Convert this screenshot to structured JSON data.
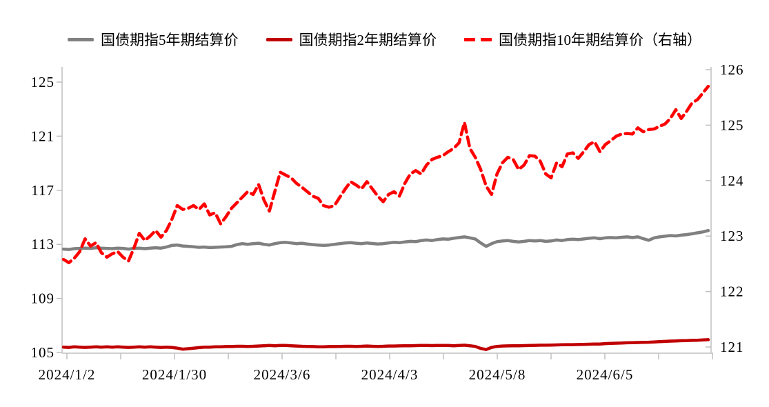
{
  "colors": {
    "gray_series": "#808080",
    "darkred_series": "#C00000",
    "red_series": "#FF0000",
    "axis_line": "#CFCFCF",
    "tick_mark": "#BFBFBF",
    "text": "#000000",
    "background": "#FFFFFF"
  },
  "legend": [
    {
      "id": "5y",
      "label": "国债期指5年期结算价",
      "color": "#808080",
      "style": "solid"
    },
    {
      "id": "2y",
      "label": "国债期指2年期结算价",
      "color": "#C00000",
      "style": "solid"
    },
    {
      "id": "10y",
      "label": "国债期指10年期结算价（右轴）",
      "color": "#FF0000",
      "style": "dashed"
    }
  ],
  "chart_data": {
    "type": "line",
    "title": "",
    "x_tick_labels": [
      "2024/1/2",
      "2024/1/30",
      "2024/3/6",
      "2024/4/3",
      "2024/5/8",
      "2024/6/5"
    ],
    "left_axis": {
      "ticks": [
        105,
        109,
        113,
        117,
        121,
        125
      ],
      "range": [
        105,
        125
      ]
    },
    "right_axis": {
      "ticks": [
        121,
        122,
        123,
        124,
        125,
        126
      ],
      "range": [
        121,
        126
      ]
    },
    "grid": "off",
    "legend_position": "top-center",
    "series": [
      {
        "id": "5y",
        "name": "国债期指5年期结算价",
        "axis": "left",
        "color": "#808080",
        "dash": false,
        "values": [
          112.65,
          112.62,
          112.68,
          112.7,
          112.72,
          112.7,
          112.75,
          112.72,
          112.7,
          112.68,
          112.72,
          112.7,
          112.65,
          112.7,
          112.72,
          112.68,
          112.72,
          112.75,
          112.72,
          112.8,
          112.92,
          112.95,
          112.88,
          112.85,
          112.82,
          112.78,
          112.8,
          112.76,
          112.78,
          112.8,
          112.82,
          112.85,
          112.98,
          113.05,
          113.0,
          113.05,
          113.08,
          113.0,
          112.95,
          113.05,
          113.12,
          113.15,
          113.1,
          113.05,
          113.08,
          113.02,
          112.98,
          112.95,
          112.92,
          112.95,
          113.0,
          113.05,
          113.1,
          113.12,
          113.08,
          113.05,
          113.1,
          113.06,
          113.02,
          113.05,
          113.1,
          113.15,
          113.12,
          113.18,
          113.22,
          113.2,
          113.28,
          113.32,
          113.28,
          113.35,
          113.4,
          113.38,
          113.45,
          113.5,
          113.55,
          113.48,
          113.4,
          113.1,
          112.85,
          113.05,
          113.2,
          113.25,
          113.28,
          113.22,
          113.18,
          113.22,
          113.28,
          113.25,
          113.28,
          113.22,
          113.25,
          113.32,
          113.28,
          113.35,
          113.38,
          113.35,
          113.4,
          113.45,
          113.48,
          113.42,
          113.48,
          113.5,
          113.48,
          113.52,
          113.55,
          113.5,
          113.55,
          113.42,
          113.3,
          113.48,
          113.55,
          113.6,
          113.65,
          113.62,
          113.68,
          113.72,
          113.78,
          113.85,
          113.92,
          114.02
        ]
      },
      {
        "id": "2y",
        "name": "国债期指2年期结算价",
        "axis": "left",
        "color": "#C00000",
        "dash": false,
        "values": [
          105.4,
          105.38,
          105.42,
          105.4,
          105.38,
          105.4,
          105.42,
          105.4,
          105.42,
          105.4,
          105.42,
          105.4,
          105.38,
          105.4,
          105.42,
          105.4,
          105.42,
          105.4,
          105.38,
          105.4,
          105.38,
          105.32,
          105.25,
          105.28,
          105.32,
          105.36,
          105.4,
          105.4,
          105.42,
          105.42,
          105.44,
          105.44,
          105.46,
          105.46,
          105.45,
          105.46,
          105.48,
          105.5,
          105.52,
          105.5,
          105.52,
          105.52,
          105.5,
          105.48,
          105.46,
          105.45,
          105.44,
          105.42,
          105.42,
          105.44,
          105.44,
          105.45,
          105.46,
          105.46,
          105.45,
          105.46,
          105.48,
          105.46,
          105.45,
          105.46,
          105.48,
          105.48,
          105.49,
          105.5,
          105.5,
          105.51,
          105.52,
          105.52,
          105.51,
          105.52,
          105.52,
          105.52,
          105.5,
          105.52,
          105.54,
          105.5,
          105.45,
          105.3,
          105.22,
          105.38,
          105.45,
          105.48,
          105.49,
          105.5,
          105.5,
          105.51,
          105.52,
          105.53,
          105.54,
          105.54,
          105.55,
          105.56,
          105.57,
          105.58,
          105.58,
          105.59,
          105.6,
          105.61,
          105.62,
          105.63,
          105.66,
          105.68,
          105.69,
          105.7,
          105.72,
          105.73,
          105.74,
          105.75,
          105.76,
          105.78,
          105.8,
          105.82,
          105.84,
          105.85,
          105.87,
          105.88,
          105.9,
          105.91,
          105.93,
          105.95
        ]
      },
      {
        "id": "10y",
        "name": "国债期指10年期结算价（右轴）",
        "axis": "right",
        "color": "#FF0000",
        "dash": true,
        "values": [
          122.58,
          122.52,
          122.6,
          122.72,
          122.95,
          122.82,
          122.88,
          122.7,
          122.62,
          122.68,
          122.72,
          122.62,
          122.55,
          122.78,
          123.05,
          122.92,
          123.0,
          123.1,
          122.98,
          123.1,
          123.3,
          123.55,
          123.48,
          123.5,
          123.55,
          123.48,
          123.58,
          123.38,
          123.42,
          123.22,
          123.35,
          123.5,
          123.6,
          123.7,
          123.8,
          123.75,
          123.93,
          123.65,
          123.45,
          123.8,
          124.15,
          124.1,
          124.05,
          123.95,
          123.88,
          123.8,
          123.72,
          123.68,
          123.55,
          123.52,
          123.55,
          123.7,
          123.85,
          123.98,
          123.92,
          123.85,
          123.98,
          123.85,
          123.72,
          123.62,
          123.75,
          123.8,
          123.72,
          123.95,
          124.12,
          124.18,
          124.12,
          124.28,
          124.38,
          124.42,
          124.45,
          124.52,
          124.58,
          124.68,
          125.05,
          124.58,
          124.42,
          124.2,
          123.9,
          123.75,
          124.12,
          124.32,
          124.42,
          124.38,
          124.2,
          124.28,
          124.45,
          124.44,
          124.35,
          124.12,
          124.05,
          124.32,
          124.25,
          124.48,
          124.5,
          124.4,
          124.52,
          124.65,
          124.7,
          124.52,
          124.65,
          124.72,
          124.8,
          124.84,
          124.85,
          124.84,
          124.95,
          124.88,
          124.92,
          124.93,
          124.98,
          125.02,
          125.12,
          125.28,
          125.12,
          125.25,
          125.4,
          125.46,
          125.58,
          125.7
        ]
      }
    ]
  }
}
